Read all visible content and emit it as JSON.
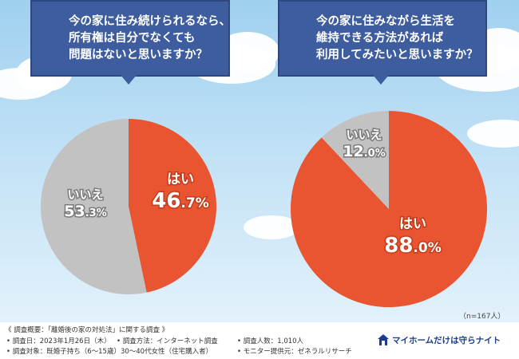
{
  "questions": {
    "left": [
      "今の家に住み続けられるなら、",
      "所有権は自分でなくても",
      "問題はないと思いますか？"
    ],
    "right": [
      "今の家に住みながら生活を",
      "維持できる方法があれば",
      "利用してみたいと思いますか？"
    ]
  },
  "chart_data": [
    {
      "type": "pie",
      "title": "今の家に住み続けられるなら、所有権は自分でなくても問題はないと思いますか？",
      "slices": [
        {
          "label": "はい",
          "value": 46.7,
          "text_int": "46",
          "text_dec": ".7%",
          "color": "#e85530"
        },
        {
          "label": "いいえ",
          "value": 53.3,
          "text_int": "53",
          "text_dec": ".3%",
          "color": "#c2c2c2"
        }
      ]
    },
    {
      "type": "pie",
      "title": "今の家に住みながら生活を維持できる方法があれば利用してみたいと思いますか？",
      "slices": [
        {
          "label": "はい",
          "value": 88.0,
          "text_int": "88",
          "text_dec": ".0%",
          "color": "#e85530"
        },
        {
          "label": "いいえ",
          "value": 12.0,
          "text_int": "12",
          "text_dec": ".0%",
          "color": "#c2c2c2"
        }
      ]
    }
  ],
  "sample_size": "（n=167人）",
  "footnotes": {
    "outline": "《 調査概要：「離婚後の家の対処法」に関する調査 》",
    "date": "• 調査日：2023年1月26日（木）",
    "method": "• 調査方法：インターネット調査",
    "count": "• 調査人数：1,010人",
    "target": "• 調査対象：既婚子持ち（6〜15歳）30〜40代女性（住宅購入者）",
    "provider": "• モニター提供元：ゼネラルリサーチ"
  },
  "brand": {
    "name": "マイホームだけは守らナイト",
    "icon": "house-icon",
    "color": "#1a3f8f"
  }
}
